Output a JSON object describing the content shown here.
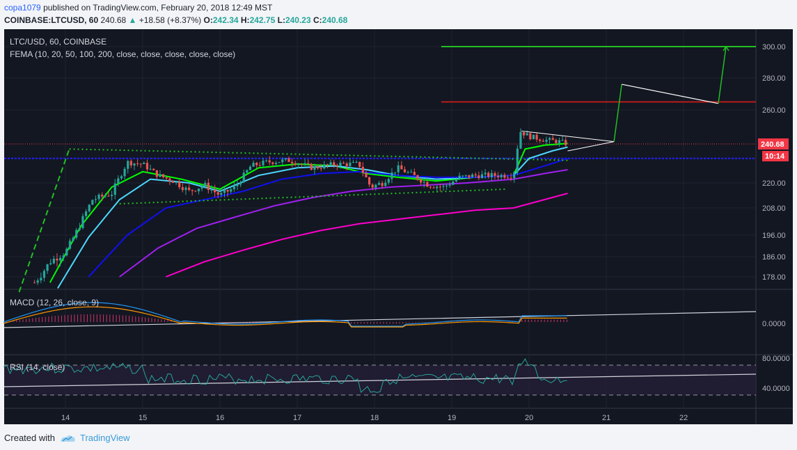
{
  "header": {
    "user": "copa1079",
    "published": "published on TradingView.com, February 20, 2018 12:49 MST",
    "symbol": "COINBASE:LTCUSD, 60",
    "last": "240.68",
    "change": "+18.58 (+8.37%)",
    "o_label": "O:",
    "o": "242.34",
    "h_label": "H:",
    "h": "242.75",
    "l_label": "L:",
    "l": "240.23",
    "c_label": "C:",
    "c": "240.68"
  },
  "legend": {
    "title": "LTC/USD, 60, COINBASE",
    "fema": "FEMA (10, 20, 50, 100, 200, close, close, close, close, close)",
    "macd": "MACD (12, 26, close, 9)",
    "rsi": "RSI (14, close)"
  },
  "price_axis": {
    "ticks": [
      "300.00",
      "280.00",
      "260.00",
      "220.00",
      "208.00",
      "196.00",
      "186.00",
      "178.00"
    ],
    "tick_values": [
      300,
      280,
      260,
      220,
      208,
      196,
      186,
      178
    ],
    "last_price_label": "240.68",
    "countdown_label": "10:14"
  },
  "macd_axis": {
    "ticks": [
      "0.0000"
    ]
  },
  "rsi_axis": {
    "ticks": [
      "80.0000",
      "40.0000"
    ]
  },
  "time_axis": {
    "ticks": [
      "14",
      "15",
      "16",
      "17",
      "18",
      "19",
      "20",
      "21",
      "22"
    ]
  },
  "footer": {
    "created_with": "Created with",
    "brand": "TradingView"
  },
  "colors": {
    "background": "#131722",
    "up": "#26a69a",
    "down": "#ef5350",
    "ema10": "#00ff00",
    "ema20": "#4dd9ff",
    "ema50": "#1010f0",
    "ema100": "#a020f0",
    "ema200": "#ff00cc",
    "resistance_blue": "#2323ff",
    "target_red": "#b71c1c",
    "target_green": "#22c022",
    "last_price": "#f23645"
  },
  "chart_data": {
    "type": "candlestick",
    "title": "LTC/USD, 60, COINBASE",
    "x_ticks": [
      "14",
      "15",
      "16",
      "17",
      "18",
      "19",
      "20",
      "21",
      "22"
    ],
    "y_ticks": [
      300,
      280,
      260,
      220,
      208,
      196,
      186,
      178
    ],
    "last_price": 240.68,
    "levels": {
      "blue_horizontal": 233,
      "red_target": 265,
      "green_target": 300
    },
    "close_path": [
      {
        "x": 13.6,
        "y": 175
      },
      {
        "x": 13.8,
        "y": 184
      },
      {
        "x": 14.0,
        "y": 188
      },
      {
        "x": 14.15,
        "y": 198
      },
      {
        "x": 14.35,
        "y": 212
      },
      {
        "x": 14.6,
        "y": 215
      },
      {
        "x": 14.8,
        "y": 231
      },
      {
        "x": 15.0,
        "y": 230
      },
      {
        "x": 15.2,
        "y": 224
      },
      {
        "x": 15.4,
        "y": 221
      },
      {
        "x": 15.6,
        "y": 216
      },
      {
        "x": 15.8,
        "y": 219
      },
      {
        "x": 16.0,
        "y": 214
      },
      {
        "x": 16.2,
        "y": 218
      },
      {
        "x": 16.4,
        "y": 229
      },
      {
        "x": 16.6,
        "y": 231
      },
      {
        "x": 16.9,
        "y": 232
      },
      {
        "x": 17.2,
        "y": 228
      },
      {
        "x": 17.5,
        "y": 230
      },
      {
        "x": 17.8,
        "y": 230
      },
      {
        "x": 17.95,
        "y": 218
      },
      {
        "x": 18.1,
        "y": 220
      },
      {
        "x": 18.3,
        "y": 228
      },
      {
        "x": 18.5,
        "y": 224
      },
      {
        "x": 18.7,
        "y": 219
      },
      {
        "x": 18.9,
        "y": 218
      },
      {
        "x": 19.1,
        "y": 223
      },
      {
        "x": 19.3,
        "y": 224
      },
      {
        "x": 19.6,
        "y": 224
      },
      {
        "x": 19.8,
        "y": 224
      },
      {
        "x": 19.88,
        "y": 248
      },
      {
        "x": 20.0,
        "y": 245
      },
      {
        "x": 20.2,
        "y": 243
      },
      {
        "x": 20.4,
        "y": 242
      },
      {
        "x": 20.5,
        "y": 240.68
      }
    ],
    "ema_series": [
      {
        "name": "10",
        "color": "#00ff00",
        "points": [
          [
            13.8,
            175
          ],
          [
            14.2,
            200
          ],
          [
            14.6,
            218
          ],
          [
            15.0,
            226
          ],
          [
            15.5,
            222
          ],
          [
            16.0,
            217
          ],
          [
            16.5,
            228
          ],
          [
            17.0,
            230
          ],
          [
            17.5,
            229
          ],
          [
            17.9,
            225
          ],
          [
            18.3,
            223
          ],
          [
            18.8,
            221
          ],
          [
            19.3,
            223
          ],
          [
            19.8,
            224
          ],
          [
            19.95,
            238
          ],
          [
            20.2,
            240
          ],
          [
            20.5,
            241
          ]
        ]
      },
      {
        "name": "20",
        "color": "#4dd9ff",
        "points": [
          [
            13.9,
            172
          ],
          [
            14.3,
            195
          ],
          [
            14.7,
            212
          ],
          [
            15.1,
            222
          ],
          [
            15.6,
            220
          ],
          [
            16.0,
            216
          ],
          [
            16.5,
            224
          ],
          [
            17.0,
            228
          ],
          [
            17.5,
            229
          ],
          [
            17.9,
            227
          ],
          [
            18.3,
            224
          ],
          [
            18.8,
            222
          ],
          [
            19.3,
            223
          ],
          [
            19.8,
            224
          ],
          [
            20.0,
            233
          ],
          [
            20.3,
            237
          ],
          [
            20.5,
            239
          ]
        ]
      },
      {
        "name": "50",
        "color": "#1010f0",
        "points": [
          [
            14.3,
            178
          ],
          [
            14.8,
            196
          ],
          [
            15.3,
            208
          ],
          [
            15.8,
            212
          ],
          [
            16.3,
            216
          ],
          [
            16.8,
            222
          ],
          [
            17.3,
            225
          ],
          [
            17.8,
            226
          ],
          [
            18.3,
            224
          ],
          [
            18.8,
            223
          ],
          [
            19.3,
            223
          ],
          [
            19.8,
            224
          ],
          [
            20.2,
            229
          ],
          [
            20.5,
            233
          ]
        ]
      },
      {
        "name": "100",
        "color": "#a020f0",
        "points": [
          [
            14.7,
            178
          ],
          [
            15.2,
            190
          ],
          [
            15.7,
            199
          ],
          [
            16.2,
            204
          ],
          [
            16.7,
            209
          ],
          [
            17.2,
            213
          ],
          [
            17.7,
            216
          ],
          [
            18.2,
            218
          ],
          [
            18.7,
            219
          ],
          [
            19.2,
            220
          ],
          [
            19.8,
            222
          ],
          [
            20.2,
            225
          ],
          [
            20.5,
            227
          ]
        ]
      },
      {
        "name": "200",
        "color": "#ff00cc",
        "points": [
          [
            15.3,
            178
          ],
          [
            15.8,
            184
          ],
          [
            16.3,
            189
          ],
          [
            16.8,
            194
          ],
          [
            17.3,
            198
          ],
          [
            17.8,
            201
          ],
          [
            18.3,
            203
          ],
          [
            18.8,
            205
          ],
          [
            19.3,
            207
          ],
          [
            19.8,
            208
          ],
          [
            20.2,
            212
          ],
          [
            20.5,
            215
          ]
        ]
      }
    ],
    "drawings": {
      "triangle_top": [
        [
          14.05,
          238
        ],
        [
          20.5,
          232
        ]
      ],
      "triangle_bottom": [
        [
          14.7,
          210
        ],
        [
          19.7,
          217
        ]
      ],
      "pennant_top": [
        [
          19.9,
          248
        ],
        [
          21.1,
          242
        ]
      ],
      "pennant_bottom": [
        [
          20.5,
          237
        ],
        [
          21.1,
          242
        ]
      ],
      "projection": [
        [
          21.1,
          242
        ],
        [
          21.2,
          276
        ],
        [
          22.45,
          264
        ],
        [
          22.55,
          300
        ]
      ],
      "green_impulse": [
        [
          13.4,
          170
        ],
        [
          14.05,
          238
        ]
      ]
    },
    "macd": {
      "name": "MACD (12, 26, close, 9)",
      "zero": 0
    },
    "rsi": {
      "name": "RSI (14, close)",
      "upper": 70,
      "lower": 30
    }
  }
}
